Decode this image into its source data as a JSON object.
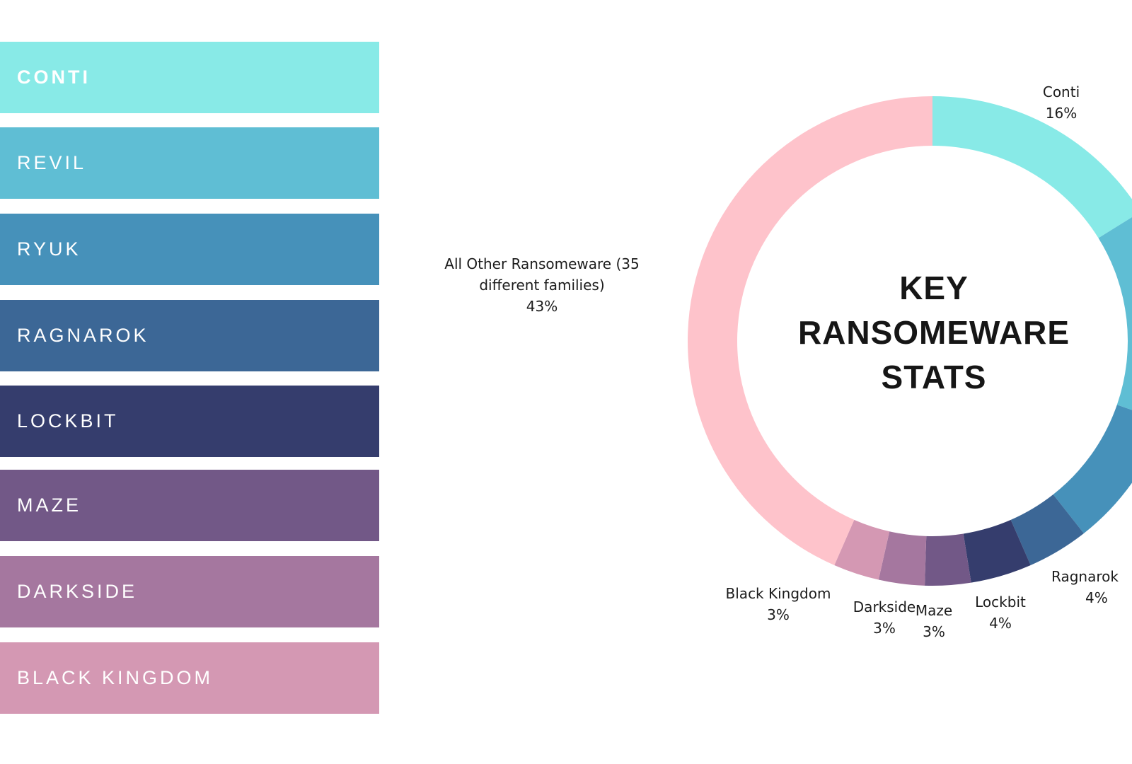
{
  "legend": [
    {
      "label": "CONTI",
      "color": "#88EAE7"
    },
    {
      "label": "REVIL",
      "color": "#5FBED4"
    },
    {
      "label": "RYUK",
      "color": "#4691BA"
    },
    {
      "label": "RAGNAROK",
      "color": "#3C6796"
    },
    {
      "label": "LOCKBIT",
      "color": "#353D6D"
    },
    {
      "label": "MAZE",
      "color": "#725887"
    },
    {
      "label": "DARKSIDE",
      "color": "#A5779F"
    },
    {
      "label": "BLACK KINGDOM",
      "color": "#D498B3"
    }
  ],
  "center_title": [
    "KEY",
    "RANSOMEWARE",
    "STATS"
  ],
  "chart_data": {
    "type": "pie",
    "donut": true,
    "title": "KEY RANSOMEWARE STATS",
    "slices": [
      {
        "name": "Conti",
        "label": "Conti",
        "pct": "16%",
        "value": 16,
        "color": "#88EAE7"
      },
      {
        "name": "REvil",
        "value": 14,
        "color": "#5FBED4"
      },
      {
        "name": "Ryuk",
        "value": 9,
        "color": "#4691BA"
      },
      {
        "name": "Ragnarok",
        "label": "Ragnarok",
        "pct": "4%",
        "value": 4,
        "color": "#3C6796"
      },
      {
        "name": "Lockbit",
        "label": "Lockbit",
        "pct": "4%",
        "value": 4,
        "color": "#353D6D"
      },
      {
        "name": "Maze",
        "label": "Maze",
        "pct": "3%",
        "value": 3,
        "color": "#725887"
      },
      {
        "name": "Darkside",
        "label": "Darkside",
        "pct": "3%",
        "value": 3,
        "color": "#A5779F"
      },
      {
        "name": "Black Kingdom",
        "label": "Black Kingdom",
        "pct": "3%",
        "value": 3,
        "color": "#D498B3"
      },
      {
        "name": "All Other Ransomeware (35 different families)",
        "label": "All Other Ransomeware (35 different families)",
        "pct": "43%",
        "value": 43,
        "color": "#FEC3CB"
      }
    ]
  }
}
